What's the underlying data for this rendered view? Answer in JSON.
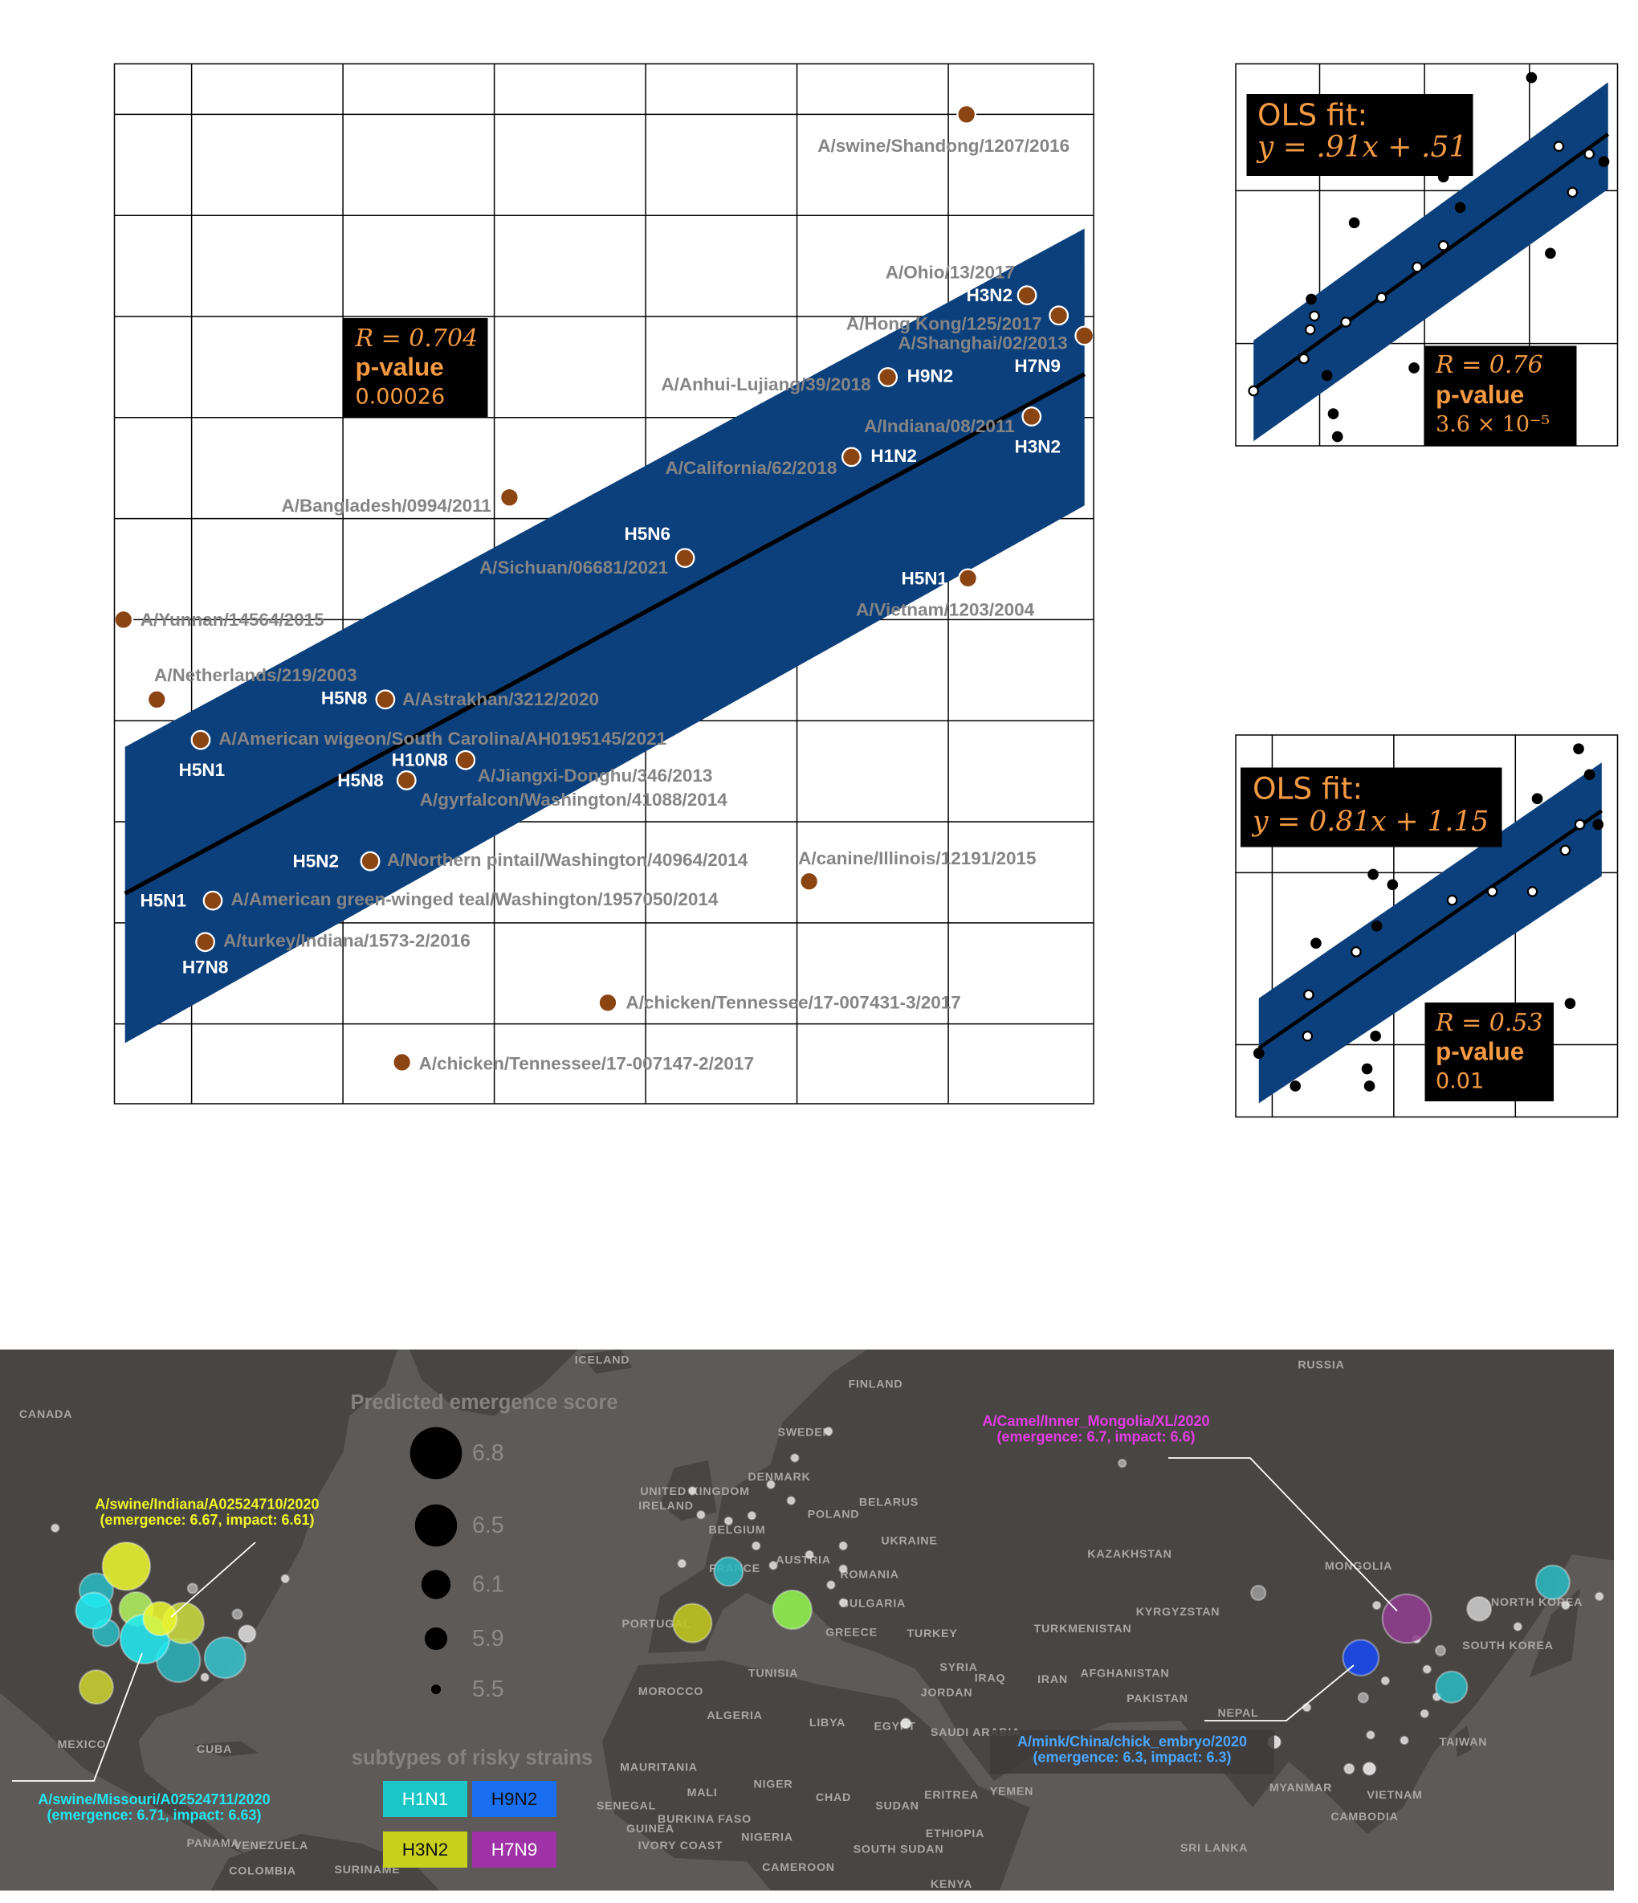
{
  "chart_data": [
    {
      "type": "scatter",
      "xlim": [
        0.49,
        6.96
      ],
      "ylim": [
        0.21,
        10.5
      ],
      "xticks": [
        1,
        2,
        3,
        4,
        5,
        6
      ],
      "yticks": [
        1,
        2,
        3,
        4,
        5,
        6,
        7,
        8,
        9,
        10
      ],
      "grid": true,
      "color": "#8b4513",
      "band_color": "#0c407c",
      "fit_color": "#000000",
      "fit": {
        "x": [
          0.56,
          6.9
        ],
        "y": [
          2.29,
          7.43
        ]
      },
      "band": {
        "x": [
          0.56,
          6.9
        ],
        "upper": [
          3.74,
          8.87
        ],
        "lower": [
          0.81,
          6.13
        ]
      },
      "points": [
        {
          "x": 6.12,
          "y": 10.0,
          "label": "A/swine/Shandong/1207/2016"
        },
        {
          "x": 6.52,
          "y": 8.21,
          "label": "A/Ohio/13/2017",
          "subtype": "H3N2"
        },
        {
          "x": 6.73,
          "y": 8.01,
          "label": "A/Hong Kong/125/2017"
        },
        {
          "x": 6.9,
          "y": 7.81,
          "label": "A/Shanghai/02/2013",
          "subtype": "H7N9"
        },
        {
          "x": 5.6,
          "y": 7.4,
          "label": "A/Anhui-Lujiang/39/2018",
          "subtype": "H9N2"
        },
        {
          "x": 6.55,
          "y": 7.01,
          "label": "A/Indiana/08/2011",
          "subtype": "H3N2"
        },
        {
          "x": 5.36,
          "y": 6.61,
          "label": "A/California/62/2018",
          "subtype": "H1N2"
        },
        {
          "x": 3.1,
          "y": 6.21,
          "label": "A/Bangladesh/0994/2011"
        },
        {
          "x": 4.26,
          "y": 5.61,
          "label": "A/Sichuan/06681/2021",
          "subtype": "H5N6"
        },
        {
          "x": 6.13,
          "y": 5.41,
          "label": "A/Vietnam/1203/2004",
          "subtype": "H5N1"
        },
        {
          "x": 0.55,
          "y": 5.0,
          "label": "A/Yunnan/14564/2015"
        },
        {
          "x": 0.77,
          "y": 4.21,
          "label": "A/Netherlands/219/2003"
        },
        {
          "x": 2.28,
          "y": 4.21,
          "label": "A/Astrakhan/3212/2020",
          "subtype": "H5N8"
        },
        {
          "x": 1.06,
          "y": 3.81,
          "label": "A/American wigeon/South Carolina/AH0195145/2021",
          "subtype": "H5N1"
        },
        {
          "x": 2.81,
          "y": 3.61,
          "label": "A/Jiangxi-Donghu/346/2013",
          "subtype": "H10N8"
        },
        {
          "x": 2.42,
          "y": 3.41,
          "label": "A/gyrfalcon/Washington/41088/2014",
          "subtype": "H5N8"
        },
        {
          "x": 2.18,
          "y": 2.61,
          "label": "A/Northern pintail/Washington/40964/2014",
          "subtype": "H5N2"
        },
        {
          "x": 5.08,
          "y": 2.41,
          "label": "A/canine/Illinois/12191/2015"
        },
        {
          "x": 1.14,
          "y": 2.22,
          "label": "A/American green-winged teal/Washington/1957050/2014",
          "subtype": "H5N1"
        },
        {
          "x": 1.09,
          "y": 1.81,
          "label": "A/turkey/Indiana/1573-2/2016",
          "subtype": "H7N8"
        },
        {
          "x": 3.75,
          "y": 1.21,
          "label": "A/chicken/Tennessee/17-007431-3/2017"
        },
        {
          "x": 2.39,
          "y": 0.62,
          "label": "A/chicken/Tennessee/17-007147-2/2017"
        }
      ],
      "annotation": {
        "r": "R = 0.704",
        "p_label": "p-value",
        "p": "0.00026"
      }
    },
    {
      "type": "scatter",
      "xlim": [
        0.2,
        3.84
      ],
      "ylim": [
        0.33,
        2.83
      ],
      "xticks": [
        1,
        2,
        3
      ],
      "yticks": [
        1,
        2
      ],
      "grid": true,
      "band_color": "#0c407c",
      "fit_color": "#000000",
      "fit": {
        "x": [
          0.37,
          3.75
        ],
        "y": [
          0.7,
          2.37
        ]
      },
      "band": {
        "x": [
          0.37,
          3.75
        ],
        "upper": [
          1.02,
          2.71
        ],
        "lower": [
          0.36,
          2.01
        ]
      },
      "x": [
        3.02,
        3.28,
        3.57,
        3.71,
        3.41,
        2.18,
        2.34,
        1.33,
        2.18,
        3.2,
        1.93,
        1.59,
        0.92,
        0.95,
        0.91,
        1.25,
        0.37,
        0.85,
        1.9,
        1.07,
        1.13,
        1.17
      ],
      "values": [
        2.74,
        2.29,
        2.24,
        2.19,
        1.99,
        2.09,
        1.89,
        1.79,
        1.64,
        1.59,
        1.5,
        1.3,
        1.29,
        1.18,
        1.09,
        1.14,
        0.69,
        0.9,
        0.84,
        0.79,
        0.54,
        0.39
      ],
      "marker_colors": [
        "#000000",
        "#ffffff",
        "#ffffff",
        "#000000",
        "#ffffff",
        "#000000",
        "#000000",
        "#000000",
        "#ffffff",
        "#000000",
        "#ffffff",
        "#ffffff",
        "#000000",
        "#ffffff",
        "#ffffff",
        "#ffffff",
        "#ffffff",
        "#ffffff",
        "#000000",
        "#000000",
        "#000000",
        "#000000"
      ],
      "annotation": {
        "fit_label": "OLS fit:",
        "equation": "y = .91x + .51",
        "r": "R = 0.76",
        "p_label": "p-value",
        "p": "3.6 × 10⁻⁵"
      }
    },
    {
      "type": "scatter",
      "xlim": [
        0.7,
        3.84
      ],
      "ylim": [
        0.58,
        2.8
      ],
      "xticks": [
        1,
        2,
        3
      ],
      "yticks": [
        1,
        2
      ],
      "grid": true,
      "band_color": "#0c407c",
      "fit_color": "#000000",
      "fit": {
        "x": [
          0.89,
          3.71
        ],
        "y": [
          0.98,
          2.36
        ]
      },
      "band": {
        "x": [
          0.89,
          3.71
        ],
        "upper": [
          1.27,
          2.64
        ],
        "lower": [
          0.66,
          1.98
        ]
      },
      "x": [
        3.52,
        3.61,
        3.18,
        3.53,
        3.68,
        3.41,
        1.83,
        1.99,
        2.48,
        2.81,
        3.14,
        1.86,
        1.36,
        1.69,
        1.3,
        3.45,
        1.29,
        1.85,
        0.89,
        1.19,
        1.78,
        1.8
      ],
      "values": [
        2.72,
        2.57,
        2.43,
        2.28,
        2.28,
        2.13,
        1.99,
        1.93,
        1.84,
        1.89,
        1.89,
        1.69,
        1.59,
        1.54,
        1.29,
        1.24,
        1.05,
        1.05,
        0.95,
        0.76,
        0.86,
        0.76
      ],
      "marker_colors": [
        "#000000",
        "#000000",
        "#000000",
        "#ffffff",
        "#000000",
        "#ffffff",
        "#000000",
        "#000000",
        "#ffffff",
        "#ffffff",
        "#ffffff",
        "#000000",
        "#000000",
        "#ffffff",
        "#ffffff",
        "#000000",
        "#ffffff",
        "#000000",
        "#000000",
        "#000000",
        "#000000",
        "#000000"
      ],
      "annotation": {
        "fit_label": "OLS fit:",
        "equation": "y = 0.81x + 1.15",
        "r": "R = 0.53",
        "p_label": "p-value",
        "p": "0.01"
      }
    },
    {
      "type": "map",
      "size_legend": {
        "title": "Predicted emergence score",
        "values": [
          6.8,
          6.5,
          6.1,
          5.9,
          5.5
        ]
      },
      "subtype_legend": {
        "title": "subtypes of risky strains",
        "items": [
          {
            "name": "H1N1",
            "color": "#1cc6c6"
          },
          {
            "name": "H9N2",
            "color": "#1a6ef0"
          },
          {
            "name": "H3N2",
            "color": "#c8d01c"
          },
          {
            "name": "H7N9",
            "color": "#a032a8"
          }
        ]
      },
      "annotations": [
        {
          "title": "A/swine/Indiana/A02524710/2020",
          "detail": "(emergence: 6.67, impact: 6.61)",
          "color": "#f0f528"
        },
        {
          "title": "A/swine/Missouri/A02524711/2020",
          "detail": "(emergence: 6.71, impact: 6.63)",
          "color": "#22e6f0"
        },
        {
          "title": "A/Camel/Inner_Mongolia/XL/2020",
          "detail": "(emergence: 6.7, impact: 6.6)",
          "color": "#e43ce4"
        },
        {
          "title": "A/mink/China/chick_embryo/2020",
          "detail": "(emergence: 6.3, impact: 6.3)",
          "color": "#4aa6ff"
        }
      ],
      "place_labels": [
        "ICELAND",
        "RUSSIA",
        "CANADA",
        "FINLAND",
        "SWEDEN",
        "DENMARK",
        "UNITED KINGDOM",
        "IRELAND",
        "BELARUS",
        "POLAND",
        "BELGIUM",
        "UKRAINE",
        "FRANCE",
        "AUSTRIA",
        "ROMANIA",
        "KAZAKHSTAN",
        "MONGOLIA",
        "PORTUGAL",
        "BULGARIA",
        "GREECE",
        "TURKEY",
        "KYRGYZSTAN",
        "TURKMENISTAN",
        "NORTH KOREA",
        "SOUTH KOREA",
        "TUNISIA",
        "MOROCCO",
        "SYRIA",
        "IRAQ",
        "IRAN",
        "AFGHANISTAN",
        "JORDAN",
        "PAKISTAN",
        "ALGERIA",
        "LIBYA",
        "EGYPT",
        "SAUDI ARABIA",
        "NEPAL",
        "MEXICO",
        "CUBA",
        "TAIWAN",
        "MAURITANIA",
        "MALI",
        "NIGER",
        "CHAD",
        "SUDAN",
        "ERITREA",
        "YEMEN",
        "MYANMAR",
        "VIETNAM",
        "SENEGAL",
        "BURKINA FASO",
        "GUINEA",
        "NIGERIA",
        "ETHIOPIA",
        "CAMBODIA",
        "IVORY COAST",
        "SOUTH SUDAN",
        "PANAMA",
        "VENEZUELA",
        "SRI LANKA",
        "COLOMBIA",
        "SURINAME",
        "CAMEROON",
        "KENYA"
      ],
      "markers": [
        {
          "lon": -2.5,
          "lat": 50.3,
          "score": 5.43,
          "color": "#dddddd"
        },
        {
          "lon": -1.1,
          "lat": 47.6,
          "score": 5.43,
          "color": "#dddddd"
        },
        {
          "lon": 3.4,
          "lat": 46.9,
          "score": 5.43,
          "color": "#dddddd"
        },
        {
          "lon": 7.2,
          "lat": 47.5,
          "score": 5.43,
          "color": "#dddddd"
        },
        {
          "lon": 13.6,
          "lat": 49.2,
          "score": 5.43,
          "color": "#dddddd"
        },
        {
          "lon": 10.3,
          "lat": 51.0,
          "score": 5.43,
          "color": "#dddddd"
        },
        {
          "lon": 19.7,
          "lat": 57.0,
          "score": 5.43,
          "color": "#dddddd"
        },
        {
          "lon": 14.2,
          "lat": 54.0,
          "score": 5.43,
          "color": "#dddddd"
        },
        {
          "lon": 7.9,
          "lat": 44.1,
          "score": 5.43,
          "color": "#dddddd"
        },
        {
          "lon": 10.7,
          "lat": 41.9,
          "score": 5.43,
          "color": "#dddddd"
        },
        {
          "lon": 16.6,
          "lat": 43.1,
          "score": 5.43,
          "color": "#dddddd"
        },
        {
          "lon": 22.1,
          "lat": 41.5,
          "score": 5.43,
          "color": "#dddddd"
        },
        {
          "lon": 22.1,
          "lat": 44.1,
          "score": 5.43,
          "color": "#dddddd"
        },
        {
          "lon": 20.1,
          "lat": 39.7,
          "score": 5.43,
          "color": "#dddddd"
        },
        {
          "lon": 22.1,
          "lat": 37.7,
          "score": 5.43,
          "color": "#dddddd"
        },
        {
          "lon": 32.3,
          "lat": 24.1,
          "score": 5.5,
          "color": "#eeeeee"
        },
        {
          "lon": -4.2,
          "lat": 42.1,
          "score": 5.43,
          "color": "#dddddd"
        },
        {
          "lon": -68.9,
          "lat": 40.4,
          "score": 5.43,
          "color": "#dddddd"
        },
        {
          "lon": -76.7,
          "lat": 36.4,
          "score": 5.5,
          "color": "#aaaaaa"
        },
        {
          "lon": -84.0,
          "lat": 39.3,
          "score": 5.5,
          "color": "#aaaaaa"
        },
        {
          "lon": -106.4,
          "lat": 46.1,
          "score": 5.43,
          "color": "#dddddd"
        },
        {
          "lon": -82.0,
          "lat": 29.3,
          "score": 5.43,
          "color": "#dddddd"
        },
        {
          "lon": 67.6,
          "lat": 53.4,
          "score": 5.43,
          "color": "#aaaaaa"
        },
        {
          "lon": 97.7,
          "lat": 25.9,
          "score": 5.43,
          "color": "#dddddd"
        },
        {
          "lon": 106.9,
          "lat": 27.0,
          "score": 5.5,
          "color": "#aaaaaa"
        },
        {
          "lon": 110.5,
          "lat": 28.9,
          "score": 5.43,
          "color": "#dddddd"
        },
        {
          "lon": 117.3,
          "lat": 30.2,
          "score": 5.43,
          "color": "#dddddd"
        },
        {
          "lon": 119.5,
          "lat": 32.3,
          "score": 5.5,
          "color": "#aaaaaa"
        },
        {
          "lon": 118.9,
          "lat": 27.1,
          "score": 5.43,
          "color": "#dddddd"
        },
        {
          "lon": 92.4,
          "lat": 22.0,
          "score": 5.58,
          "color": "#eeeeee"
        },
        {
          "lon": 104.6,
          "lat": 19.0,
          "score": 5.5,
          "color": "#dddddd"
        },
        {
          "lon": 107.9,
          "lat": 19.0,
          "score": 5.58,
          "color": "#eeeeee"
        },
        {
          "lon": 108.1,
          "lat": 22.8,
          "score": 5.43,
          "color": "#dddddd"
        },
        {
          "lon": 113.6,
          "lat": 22.2,
          "score": 5.43,
          "color": "#dddddd"
        },
        {
          "lon": 132.1,
          "lat": 35.0,
          "score": 5.43,
          "color": "#dddddd"
        },
        {
          "lon": 139.9,
          "lat": 37.4,
          "score": 5.43,
          "color": "#dddddd"
        },
        {
          "lon": 145.4,
          "lat": 38.4,
          "score": 5.43,
          "color": "#dddddd"
        },
        {
          "lon": 116.9,
          "lat": 25.2,
          "score": 5.43,
          "color": "#dddddd"
        },
        {
          "lon": 115.6,
          "lat": 33.6,
          "score": 5.43,
          "color": "#dddddd"
        },
        {
          "lon": 109.1,
          "lat": 37.4,
          "score": 5.43,
          "color": "#dddddd"
        },
        {
          "lon": -75.1,
          "lat": 34.2,
          "score": 5.72,
          "color": "#dddddd"
        },
        {
          "lon": 89.8,
          "lat": 38.8,
          "score": 5.65,
          "color": "#9a9a9a"
        },
        {
          "lon": 125.8,
          "lat": 37.0,
          "score": 5.94,
          "color": "#cccccc"
        },
        {
          "lon": -99.7,
          "lat": 39.1,
          "score": 6.24,
          "color": "#2ab8c0"
        },
        {
          "lon": -98.1,
          "lat": 34.3,
          "score": 6.02,
          "color": "#2ab8c0"
        },
        {
          "lon": -86.3,
          "lat": 31.2,
          "score": 6.54,
          "color": "#2ab0b8"
        },
        {
          "lon": -78.7,
          "lat": 31.5,
          "score": 6.46,
          "color": "#35c0c8"
        },
        {
          "lon": -100.1,
          "lat": 36.8,
          "score": 6.31,
          "color": "#22e8f0"
        },
        {
          "lon": -99.7,
          "lat": 28.2,
          "score": 6.24,
          "color": "#c8d030"
        },
        {
          "lon": -94.8,
          "lat": 41.8,
          "score": 6.67,
          "color": "#e8f530"
        },
        {
          "lon": -93.2,
          "lat": 37.0,
          "score": 6.24,
          "color": "#b0f060"
        },
        {
          "lon": -91.8,
          "lat": 33.6,
          "score": 6.71,
          "color": "#22e8f0"
        },
        {
          "lon": -85.5,
          "lat": 35.4,
          "score": 6.46,
          "color": "#c8d840"
        },
        {
          "lon": -89.3,
          "lat": 35.9,
          "score": 6.24,
          "color": "#e8f530"
        },
        {
          "lon": 3.4,
          "lat": 41.2,
          "score": 6.09,
          "color": "#2ab8c0"
        },
        {
          "lon": -2.5,
          "lat": 35.4,
          "score": 6.39,
          "color": "#c0c820"
        },
        {
          "lon": 13.8,
          "lat": 36.9,
          "score": 6.39,
          "color": "#90f050"
        },
        {
          "lon": 114.0,
          "lat": 35.9,
          "score": 6.7,
          "color": "#8e3f8e"
        },
        {
          "lon": 106.5,
          "lat": 31.5,
          "score": 6.3,
          "color": "#1848f0"
        },
        {
          "lon": 137.8,
          "lat": 40.0,
          "score": 6.24,
          "color": "#2ab8c0"
        },
        {
          "lon": 121.3,
          "lat": 28.2,
          "score": 6.17,
          "color": "#2ab8c0"
        }
      ]
    }
  ]
}
